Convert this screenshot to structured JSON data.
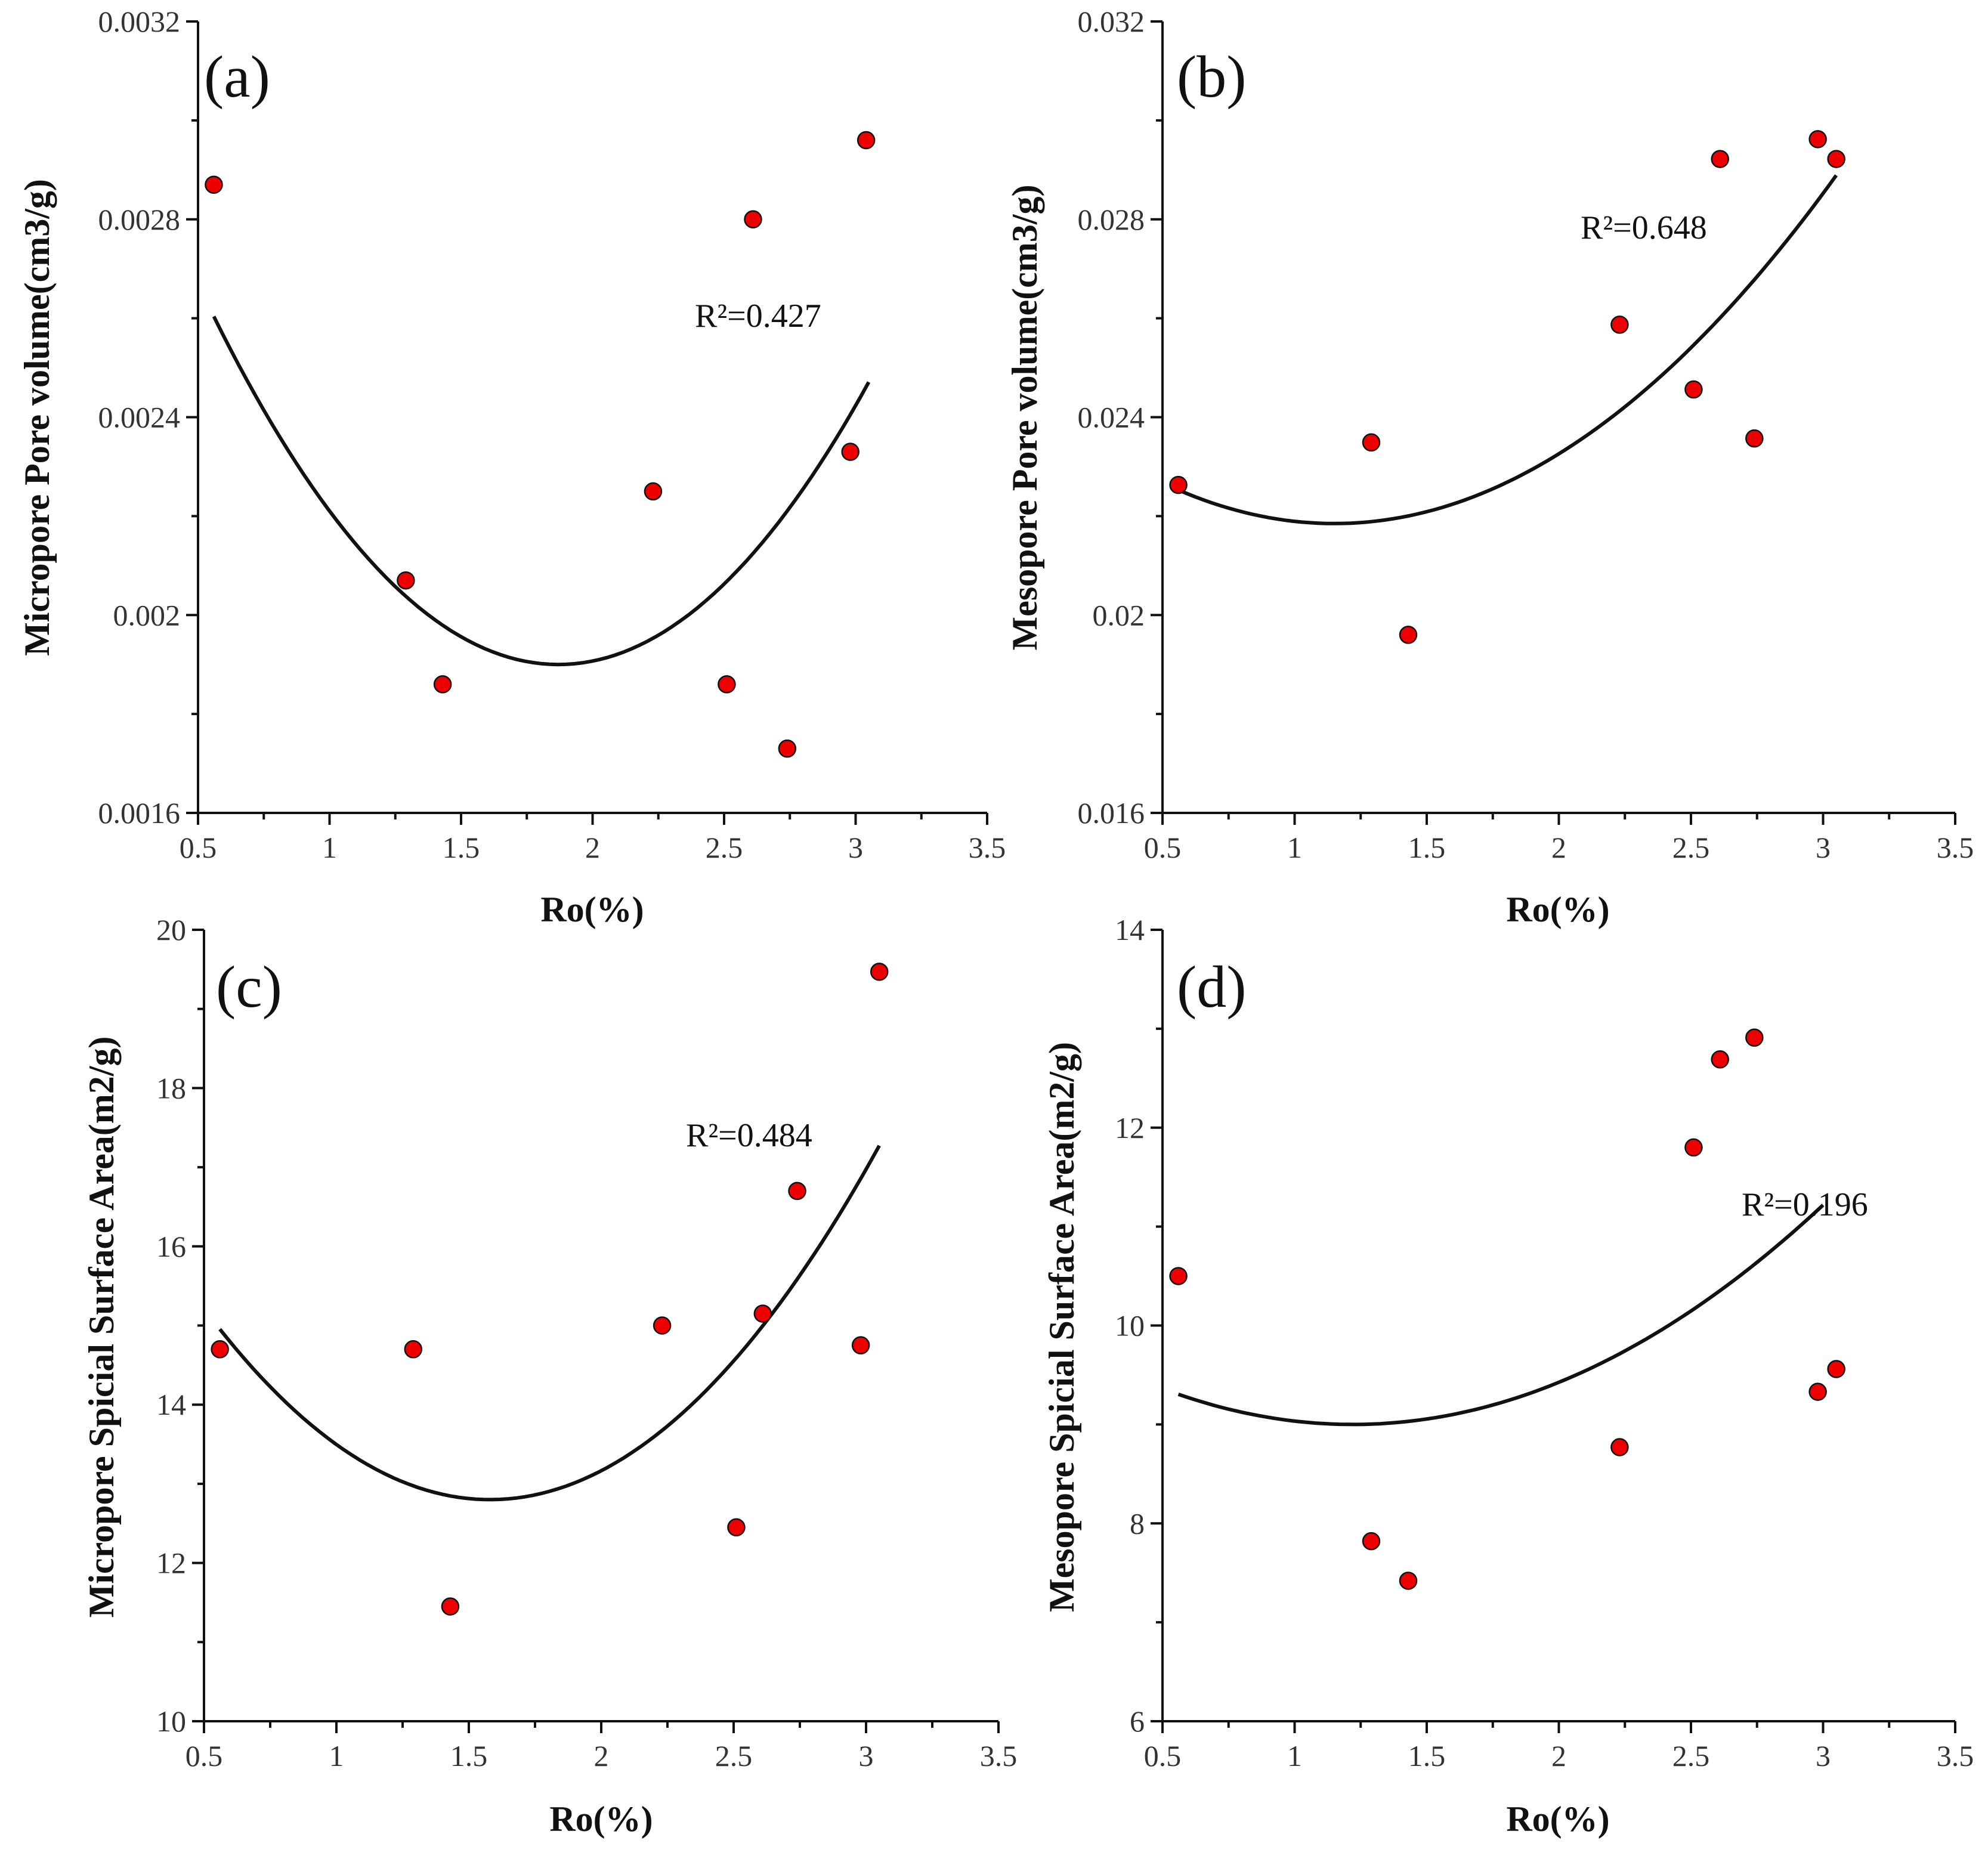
{
  "chart_data": [
    {
      "type": "scatter",
      "panel_label": "(a)",
      "xlabel": "Ro(%)",
      "ylabel": "Micropore Pore volume(cm3/g)",
      "xlim": [
        0.5,
        3.5
      ],
      "ylim": [
        0.0016,
        0.0032
      ],
      "x_ticks": [
        0.5,
        1,
        1.5,
        2,
        2.5,
        3,
        3.5
      ],
      "x_tick_labels": [
        "0.5",
        "1",
        "1.5",
        "2",
        "2.5",
        "3",
        "3.5"
      ],
      "y_ticks": [
        0.0016,
        0.002,
        0.0024,
        0.0028,
        0.0032
      ],
      "y_tick_labels": [
        "0.0016",
        "0.002",
        "0.0024",
        "0.0028",
        "0.0032"
      ],
      "points": {
        "x": [
          0.56,
          1.29,
          1.43,
          2.23,
          2.51,
          2.61,
          2.74,
          2.98,
          3.04
        ],
        "y": [
          0.00287,
          0.00207,
          0.00186,
          0.00225,
          0.00186,
          0.0028,
          0.00173,
          0.00233,
          0.00296
        ]
      },
      "fit": {
        "kind": "quadratic",
        "x_range": [
          0.56,
          3.05
        ],
        "vertex_x": 1.87,
        "vertex_y": 0.0019,
        "curvature": 0.00041,
        "r2_label": "R²=0.427"
      },
      "marker_color": "#ee0000",
      "grid": false
    },
    {
      "type": "scatter",
      "panel_label": "(b)",
      "xlabel": "Ro(%)",
      "ylabel": "Mesopore Pore volume(cm3/g)",
      "xlim": [
        0.5,
        3.5
      ],
      "ylim": [
        0.016,
        0.032
      ],
      "x_ticks": [
        0.5,
        1,
        1.5,
        2,
        2.5,
        3,
        3.5
      ],
      "x_tick_labels": [
        "0.5",
        "1",
        "1.5",
        "2",
        "2.5",
        "3",
        "3.5"
      ],
      "y_ticks": [
        0.016,
        0.02,
        0.024,
        0.028,
        0.032
      ],
      "y_tick_labels": [
        "0.016",
        "0.02",
        "0.024",
        "0.028",
        "0.032"
      ],
      "points": {
        "x": [
          0.56,
          1.29,
          1.43,
          2.23,
          2.51,
          2.61,
          2.74,
          2.98,
          3.05
        ],
        "y": [
          0.02263,
          0.02349,
          0.0196,
          0.02587,
          0.02456,
          0.02922,
          0.02357,
          0.02962,
          0.02922
        ]
      },
      "fit": {
        "kind": "quadratic",
        "x_range": [
          0.56,
          3.05
        ],
        "vertex_x": 1.15,
        "vertex_y": 0.02185,
        "curvature": 0.00195,
        "r2_label": "R²=0.648"
      },
      "marker_color": "#ee0000",
      "grid": false
    },
    {
      "type": "scatter",
      "panel_label": "(c)",
      "xlabel": "Ro(%)",
      "ylabel": "Micropore Spicial Surface Area(m2/g)",
      "xlim": [
        0.5,
        3.5
      ],
      "ylim": [
        10,
        20
      ],
      "x_ticks": [
        0.5,
        1,
        1.5,
        2,
        2.5,
        3,
        3.5
      ],
      "x_tick_labels": [
        "0.5",
        "1",
        "1.5",
        "2",
        "2.5",
        "3",
        "3.5"
      ],
      "y_ticks": [
        10,
        12,
        14,
        16,
        18,
        20
      ],
      "y_tick_labels": [
        "10",
        "12",
        "14",
        "16",
        "18",
        "20"
      ],
      "points": {
        "x": [
          0.56,
          1.29,
          1.43,
          2.23,
          2.51,
          2.61,
          2.74,
          2.98,
          3.05
        ],
        "y": [
          14.7,
          14.7,
          11.45,
          15.0,
          12.45,
          15.15,
          16.7,
          14.75,
          19.47
        ]
      },
      "fit": {
        "kind": "quadratic",
        "x_range": [
          0.56,
          3.05
        ],
        "vertex_x": 1.58,
        "vertex_y": 12.8,
        "curvature": 2.07,
        "r2_label": "R²=0.484"
      },
      "marker_color": "#ee0000",
      "grid": false
    },
    {
      "type": "scatter",
      "panel_label": "(d)",
      "xlabel": "Ro(%)",
      "ylabel": "Mesopore Spicial Surface Area(m2/g)",
      "xlim": [
        0.5,
        3.5
      ],
      "ylim": [
        6,
        14
      ],
      "x_ticks": [
        0.5,
        1,
        1.5,
        2,
        2.5,
        3,
        3.5
      ],
      "x_tick_labels": [
        "0.5",
        "1",
        "1.5",
        "2",
        "2.5",
        "3",
        "3.5"
      ],
      "y_ticks": [
        6,
        8,
        10,
        12,
        14
      ],
      "y_tick_labels": [
        "6",
        "8",
        "10",
        "12",
        "14"
      ],
      "points": {
        "x": [
          0.56,
          1.29,
          1.43,
          2.23,
          2.51,
          2.61,
          2.74,
          2.98,
          3.05
        ],
        "y": [
          10.5,
          7.82,
          7.42,
          8.77,
          11.8,
          12.69,
          12.91,
          9.33,
          9.56
        ]
      },
      "fit": {
        "kind": "quadratic",
        "x_range": [
          0.56,
          3.0
        ],
        "vertex_x": 1.22,
        "vertex_y": 9.0,
        "curvature": 0.7,
        "r2_label": "R²=0.196"
      },
      "marker_color": "#ee0000",
      "grid": false
    }
  ]
}
